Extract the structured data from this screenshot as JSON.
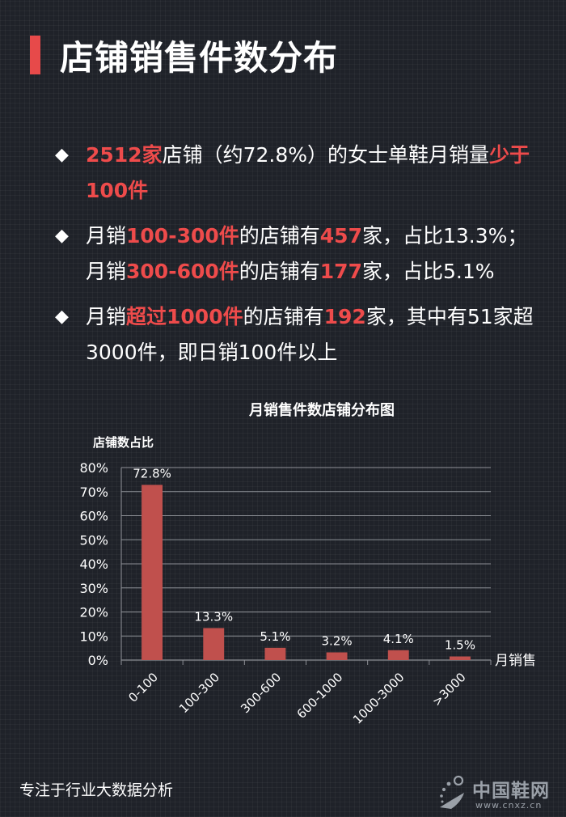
{
  "header": {
    "title": "店铺销售件数分布"
  },
  "bullets": [
    [
      {
        "t": "2512家",
        "hl": true
      },
      {
        "t": "店铺（约72.8%）的女士单鞋月销量",
        "hl": false
      },
      {
        "t": "少于100件",
        "hl": true
      }
    ],
    [
      {
        "t": "月销",
        "hl": false
      },
      {
        "t": "100-300件",
        "hl": true
      },
      {
        "t": "的店铺有",
        "hl": false
      },
      {
        "t": "457",
        "hl": true
      },
      {
        "t": "家，占比13.3%；月销",
        "hl": false
      },
      {
        "t": "300-600件",
        "hl": true
      },
      {
        "t": "的店铺有",
        "hl": false
      },
      {
        "t": "177",
        "hl": true
      },
      {
        "t": "家，占比5.1%",
        "hl": false
      }
    ],
    [
      {
        "t": "月销",
        "hl": false
      },
      {
        "t": "超过1000件",
        "hl": true
      },
      {
        "t": "的店铺有",
        "hl": false
      },
      {
        "t": "192",
        "hl": true
      },
      {
        "t": "家，其中有51家超3000件，即日销100件以上",
        "hl": false
      }
    ]
  ],
  "chart_data": {
    "type": "bar",
    "title": "月销售件数店铺分布图",
    "ylabel": "店铺数占比",
    "xlabel": "月销售",
    "categories": [
      "0-100",
      "100-300",
      "300-600",
      "600-1000",
      "1000-3000",
      ">3000"
    ],
    "values": [
      72.8,
      13.3,
      5.1,
      3.2,
      4.1,
      1.5
    ],
    "data_labels": [
      "72.8%",
      "13.3%",
      "5.1%",
      "3.2%",
      "4.1%",
      "1.5%"
    ],
    "yticks": [
      "0%",
      "10%",
      "20%",
      "30%",
      "40%",
      "50%",
      "60%",
      "70%",
      "80%"
    ],
    "ylim": [
      0,
      80
    ],
    "grid": true,
    "bar_color": "#c0504d"
  },
  "footer": {
    "text": "专注于行业大数据分析"
  },
  "logo": {
    "name": "中国鞋网",
    "url": "www.cnxz.cn"
  },
  "colors": {
    "accent": "#e74a4a",
    "highlight": "#ee4b4b",
    "background": "#1f2229"
  }
}
